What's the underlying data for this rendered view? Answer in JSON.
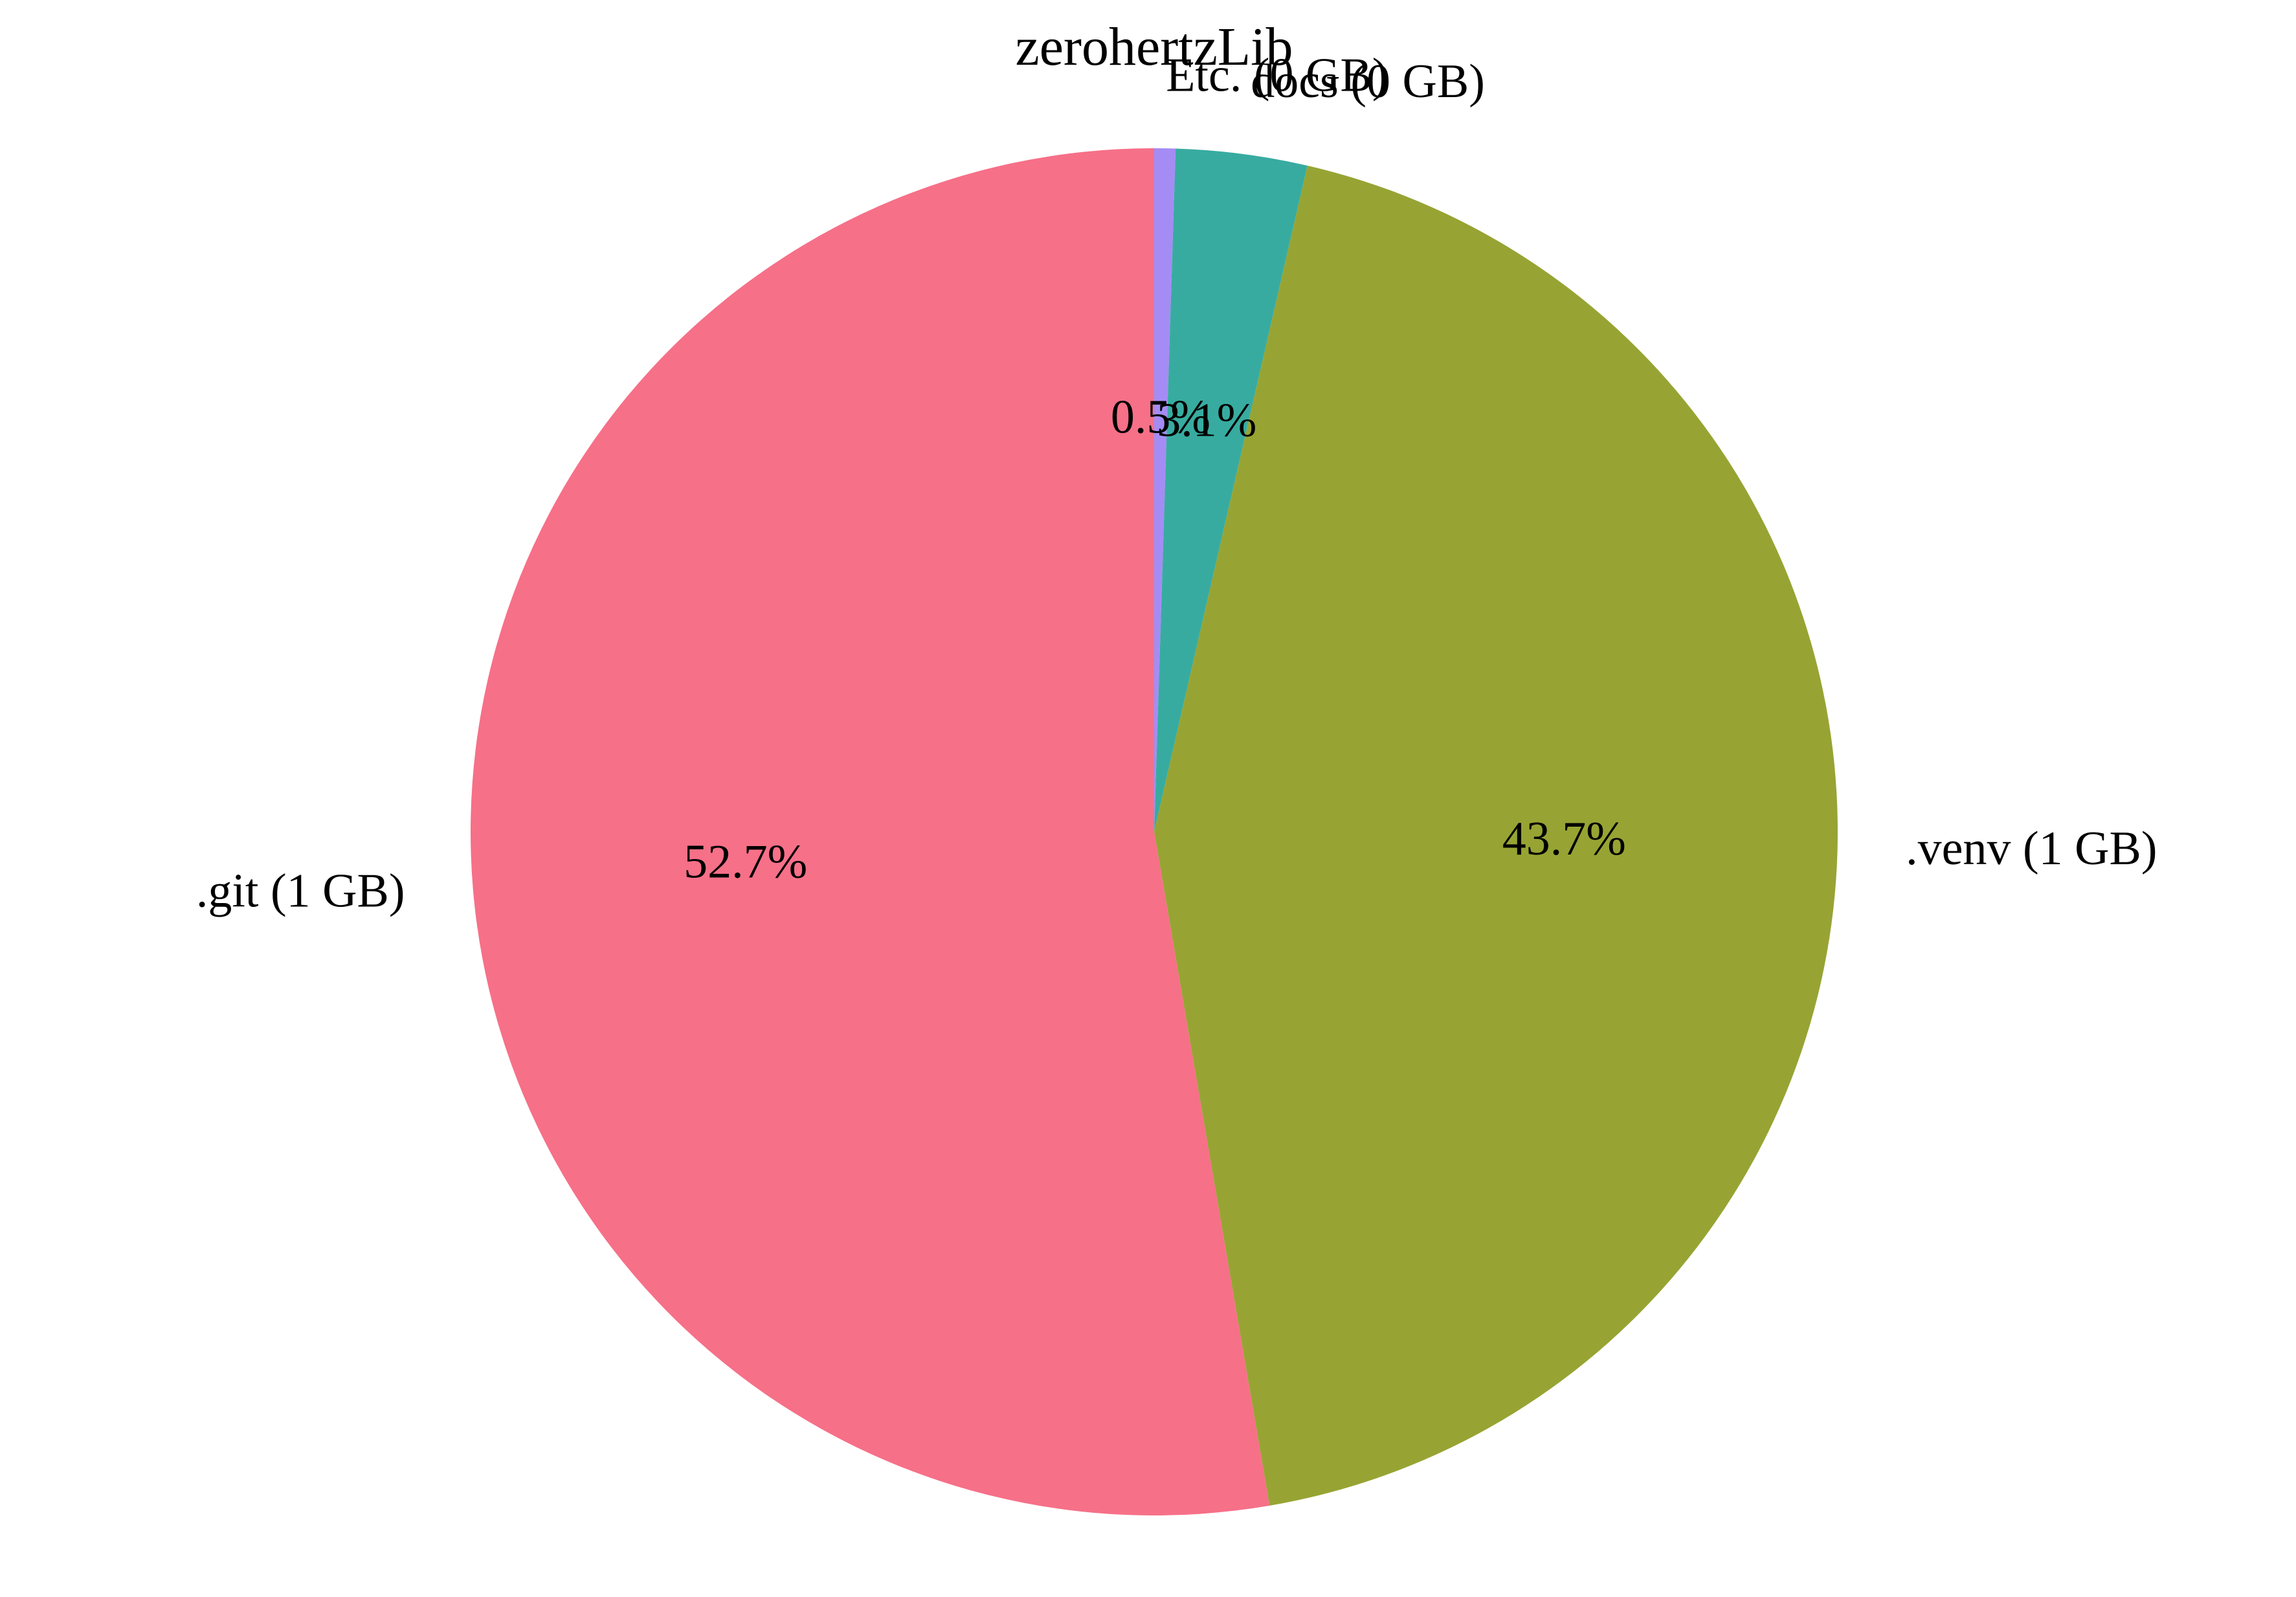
{
  "chart_data": {
    "type": "pie",
    "title": "zerohertzLib",
    "start_angle_deg": 90,
    "direction": "clockwise",
    "slices": [
      {
        "label": "Etc. (0 GB)",
        "value": 0.5,
        "pct_text": "0.5%",
        "color": "#a48cf4"
      },
      {
        "label": "docs (0 GB)",
        "value": 3.1,
        "pct_text": "3.1%",
        "color": "#38aba0"
      },
      {
        "label": ".venv (1 GB)",
        "value": 43.7,
        "pct_text": "43.7%",
        "color": "#97a433"
      },
      {
        "label": ".git (1 GB)",
        "value": 52.7,
        "pct_text": "52.7%",
        "color": "#f67088"
      }
    ]
  }
}
